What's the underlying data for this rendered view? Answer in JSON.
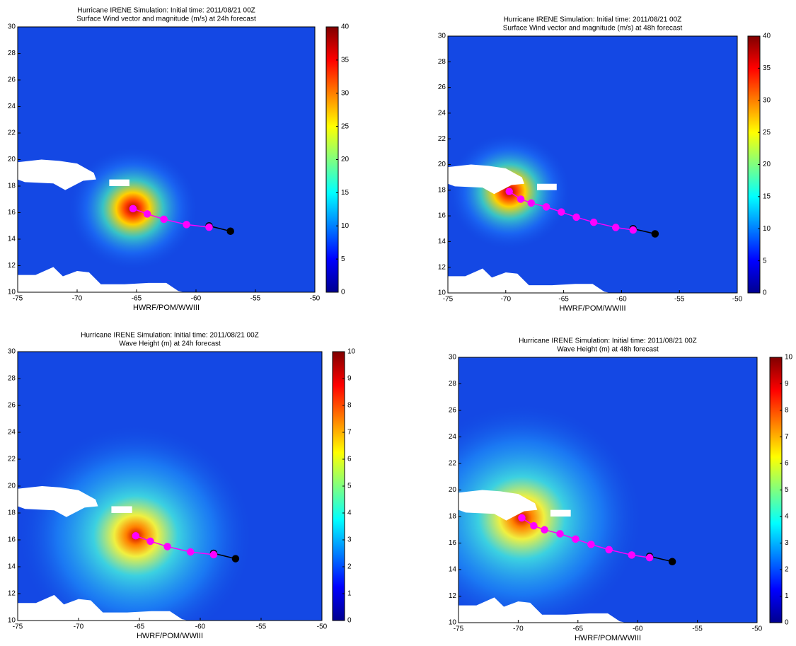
{
  "chart_data": [
    {
      "type": "heatmap",
      "title": "Hurricane IRENE Simulation: Initial time: 2011/08/21 00Z",
      "subtitle": "Surface Wind vector and magnitude (m/s) at 24h forecast",
      "x_label": "HWRF/POM/WWIII",
      "xlim": [
        -75,
        -50
      ],
      "xticks": [
        -75,
        -70,
        -65,
        -60,
        -55,
        -50
      ],
      "ylim": [
        10,
        30
      ],
      "yticks": [
        10,
        12,
        14,
        16,
        18,
        20,
        22,
        24,
        26,
        28,
        30
      ],
      "clim": [
        0,
        40
      ],
      "cticks": [
        0,
        5,
        10,
        15,
        20,
        25,
        30,
        35,
        40
      ],
      "series": [
        {
          "color": "#ff00ff",
          "x": [
            -65.3,
            -64.1,
            -62.7,
            -60.8,
            -58.9
          ],
          "values": [
            16.3,
            15.9,
            15.5,
            15.1,
            14.9
          ]
        },
        {
          "color": "#000000",
          "x": [
            -58.9,
            -57.1
          ],
          "values": [
            15.0,
            14.6
          ]
        }
      ]
    },
    {
      "type": "heatmap",
      "title": "Hurricane IRENE Simulation: Initial time: 2011/08/21 00Z",
      "subtitle": "Surface Wind vector and magnitude (m/s) at 48h forecast",
      "x_label": "HWRF/POM/WWIII",
      "xlim": [
        -75,
        -50
      ],
      "xticks": [
        -75,
        -70,
        -65,
        -60,
        -55,
        -50
      ],
      "ylim": [
        10,
        30
      ],
      "yticks": [
        10,
        12,
        14,
        16,
        18,
        20,
        22,
        24,
        26,
        28,
        30
      ],
      "clim": [
        0,
        40
      ],
      "cticks": [
        0,
        5,
        10,
        15,
        20,
        25,
        30,
        35,
        40
      ],
      "series": [
        {
          "color": "#ff00ff",
          "x": [
            -69.7,
            -68.7,
            -67.8,
            -66.5,
            -65.2,
            -63.9,
            -62.4,
            -60.5,
            -59.0
          ],
          "values": [
            17.9,
            17.3,
            17.0,
            16.7,
            16.3,
            15.9,
            15.5,
            15.1,
            14.9
          ]
        },
        {
          "color": "#000000",
          "x": [
            -59.0,
            -57.1
          ],
          "values": [
            15.0,
            14.6
          ]
        }
      ]
    },
    {
      "type": "heatmap",
      "title": "Hurricane IRENE Simulation: Initial time: 2011/08/21 00Z",
      "subtitle": "Wave Height (m) at 24h forecast",
      "x_label": "HWRF/POM/WWIII",
      "xlim": [
        -75,
        -50
      ],
      "xticks": [
        -75,
        -70,
        -65,
        -60,
        -55,
        -50
      ],
      "ylim": [
        10,
        30
      ],
      "yticks": [
        10,
        12,
        14,
        16,
        18,
        20,
        22,
        24,
        26,
        28,
        30
      ],
      "clim": [
        0,
        10
      ],
      "cticks": [
        0,
        1,
        2,
        3,
        4,
        5,
        6,
        7,
        8,
        9,
        10
      ],
      "series": [
        {
          "color": "#ff00ff",
          "x": [
            -65.3,
            -64.1,
            -62.7,
            -60.8,
            -58.9
          ],
          "values": [
            16.3,
            15.9,
            15.5,
            15.1,
            14.9
          ]
        },
        {
          "color": "#000000",
          "x": [
            -58.9,
            -57.1
          ],
          "values": [
            15.0,
            14.6
          ]
        }
      ]
    },
    {
      "type": "heatmap",
      "title": "Hurricane IRENE Simulation: Initial time: 2011/08/21 00Z",
      "subtitle": "Wave Height (m) at 48h forecast",
      "x_label": "HWRF/POM/WWIII",
      "xlim": [
        -75,
        -50
      ],
      "xticks": [
        -75,
        -70,
        -65,
        -60,
        -55,
        -50
      ],
      "ylim": [
        10,
        30
      ],
      "yticks": [
        10,
        12,
        14,
        16,
        18,
        20,
        22,
        24,
        26,
        28,
        30
      ],
      "clim": [
        0,
        10
      ],
      "cticks": [
        0,
        1,
        2,
        3,
        4,
        5,
        6,
        7,
        8,
        9,
        10
      ],
      "series": [
        {
          "color": "#ff00ff",
          "x": [
            -69.7,
            -68.7,
            -67.8,
            -66.5,
            -65.2,
            -63.9,
            -62.4,
            -60.5,
            -59.0
          ],
          "values": [
            17.9,
            17.3,
            17.0,
            16.7,
            16.3,
            15.9,
            15.5,
            15.1,
            14.9
          ]
        },
        {
          "color": "#000000",
          "x": [
            -59.0,
            -57.1
          ],
          "values": [
            15.0,
            14.6
          ]
        }
      ]
    }
  ]
}
